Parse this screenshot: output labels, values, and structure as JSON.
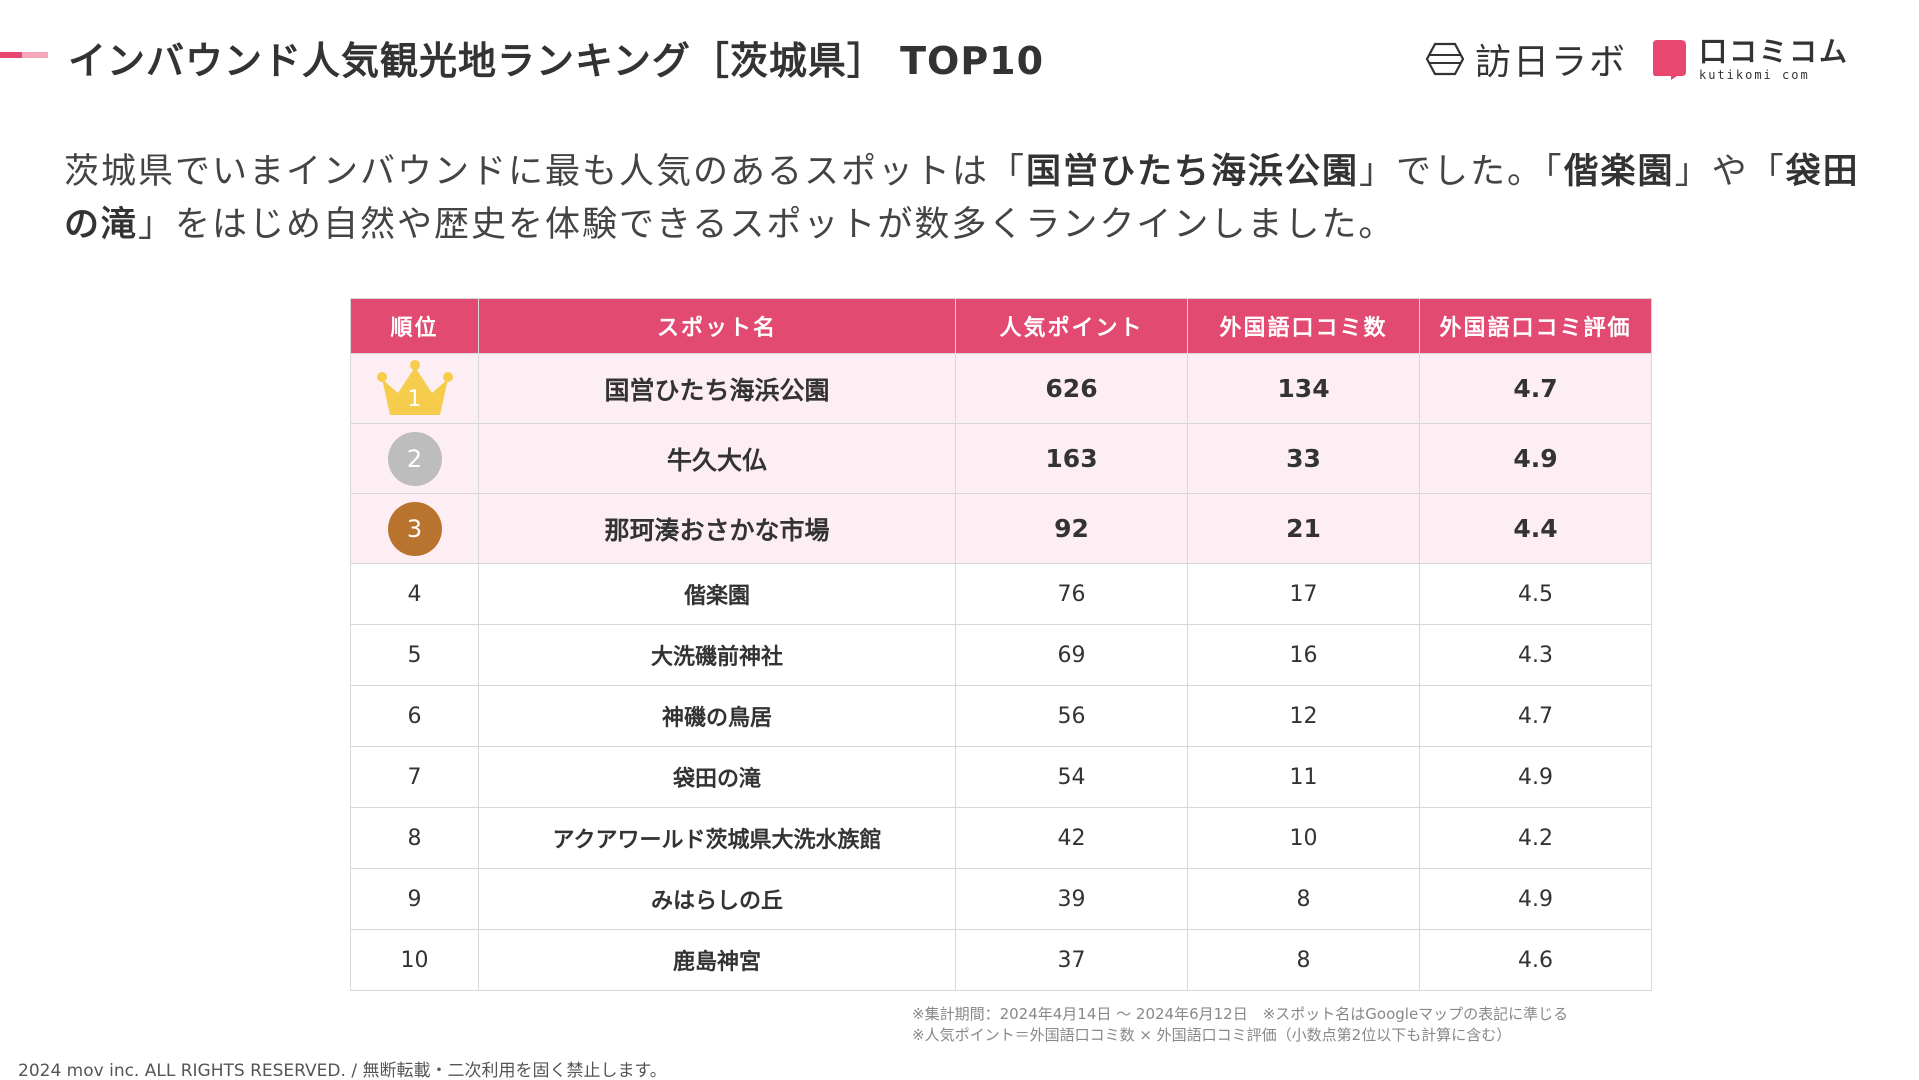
{
  "header": {
    "title": "インバウンド人気観光地ランキング［茨城県］ TOP10",
    "accent_colors": [
      "#e8476f",
      "#f4a8b9"
    ]
  },
  "logos": {
    "houjin": {
      "text": "訪日ラボ",
      "icon": "houjin-lab-logo-icon"
    },
    "kuchikomi": {
      "text": "口コミコム",
      "sub": "kutikomi com",
      "icon": "kuchikomi-logo-icon",
      "color": "#e8476f"
    }
  },
  "lead": {
    "segments": [
      {
        "text": "茨城県でいまインバウンドに最も人気のあるスポットは「",
        "bold": false
      },
      {
        "text": "国営ひたち海浜公園",
        "bold": true
      },
      {
        "text": "」でした。「",
        "bold": false
      },
      {
        "text": "偕楽園",
        "bold": true
      },
      {
        "text": "」や「",
        "bold": false
      },
      {
        "text": "袋田の滝",
        "bold": true
      },
      {
        "text": "」をはじめ自然や歴史を体験できるスポットが数多くランクインしました。",
        "bold": false
      }
    ]
  },
  "table": {
    "header_color": "#e24a72",
    "top_row_color": "#fdeef3",
    "columns": [
      "順位",
      "スポット名",
      "人気ポイント",
      "外国語口コミ数",
      "外国語口コミ評価"
    ],
    "medals": {
      "gold": "#f6cc4c",
      "silver": "#bdbdbd",
      "bronze": "#b8742e"
    },
    "rows": [
      {
        "rank": "1",
        "spot": "国営ひたち海浜公園",
        "points": "626",
        "reviews": "134",
        "rating": "4.7",
        "medal": "gold"
      },
      {
        "rank": "2",
        "spot": "牛久大仏",
        "points": "163",
        "reviews": "33",
        "rating": "4.9",
        "medal": "silver"
      },
      {
        "rank": "3",
        "spot": "那珂湊おさかな市場",
        "points": "92",
        "reviews": "21",
        "rating": "4.4",
        "medal": "bronze"
      },
      {
        "rank": "4",
        "spot": "偕楽園",
        "points": "76",
        "reviews": "17",
        "rating": "4.5"
      },
      {
        "rank": "5",
        "spot": "大洗磯前神社",
        "points": "69",
        "reviews": "16",
        "rating": "4.3"
      },
      {
        "rank": "6",
        "spot": "神磯の鳥居",
        "points": "56",
        "reviews": "12",
        "rating": "4.7"
      },
      {
        "rank": "7",
        "spot": "袋田の滝",
        "points": "54",
        "reviews": "11",
        "rating": "4.9"
      },
      {
        "rank": "8",
        "spot": "アクアワールド茨城県大洗水族館",
        "points": "42",
        "reviews": "10",
        "rating": "4.2"
      },
      {
        "rank": "9",
        "spot": "みはらしの丘",
        "points": "39",
        "reviews": "8",
        "rating": "4.9"
      },
      {
        "rank": "10",
        "spot": "鹿島神宮",
        "points": "37",
        "reviews": "8",
        "rating": "4.6"
      }
    ]
  },
  "notes": {
    "line1": "※集計期間：2024年4月14日 〜 2024年6月12日　※スポット名はGoogleマップの表記に準じる",
    "line2": "※人気ポイント＝外国語口コミ数 × 外国語口コミ評価（小数点第2位以下も計算に含む）"
  },
  "footer": {
    "copyright": "2024 mov inc. ALL RIGHTS RESERVED. / 無断転載・二次利用を固く禁止します。"
  }
}
